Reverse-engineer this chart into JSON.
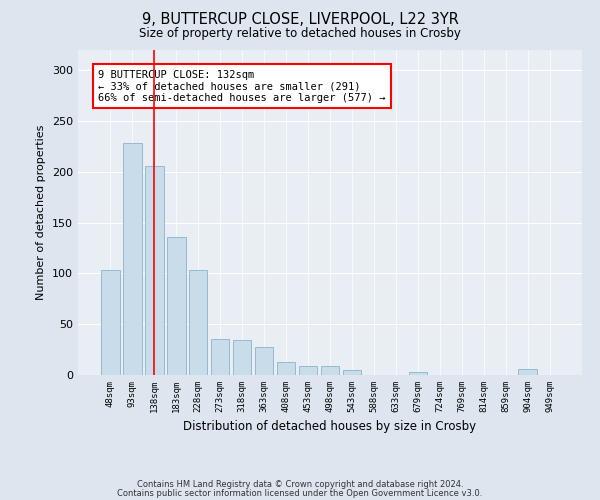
{
  "title": "9, BUTTERCUP CLOSE, LIVERPOOL, L22 3YR",
  "subtitle": "Size of property relative to detached houses in Crosby",
  "xlabel": "Distribution of detached houses by size in Crosby",
  "ylabel": "Number of detached properties",
  "categories": [
    "48sqm",
    "93sqm",
    "138sqm",
    "183sqm",
    "228sqm",
    "273sqm",
    "318sqm",
    "363sqm",
    "408sqm",
    "453sqm",
    "498sqm",
    "543sqm",
    "588sqm",
    "633sqm",
    "679sqm",
    "724sqm",
    "769sqm",
    "814sqm",
    "859sqm",
    "904sqm",
    "949sqm"
  ],
  "values": [
    103,
    228,
    206,
    136,
    103,
    35,
    34,
    28,
    13,
    9,
    9,
    5,
    0,
    0,
    3,
    0,
    0,
    0,
    0,
    6,
    0
  ],
  "bar_color": "#c8dcea",
  "bar_edge_color": "#8ab4cc",
  "vline_x": 2.0,
  "annotation_text": "9 BUTTERCUP CLOSE: 132sqm\n← 33% of detached houses are smaller (291)\n66% of semi-detached houses are larger (577) →",
  "annotation_box_color": "white",
  "annotation_box_edge": "red",
  "vline_color": "red",
  "footer1": "Contains HM Land Registry data © Crown copyright and database right 2024.",
  "footer2": "Contains public sector information licensed under the Open Government Licence v3.0.",
  "ylim": [
    0,
    320
  ],
  "yticks": [
    0,
    50,
    100,
    150,
    200,
    250,
    300
  ],
  "bg_color": "#dde6ef",
  "plot_bg_color": "#e8eef4"
}
